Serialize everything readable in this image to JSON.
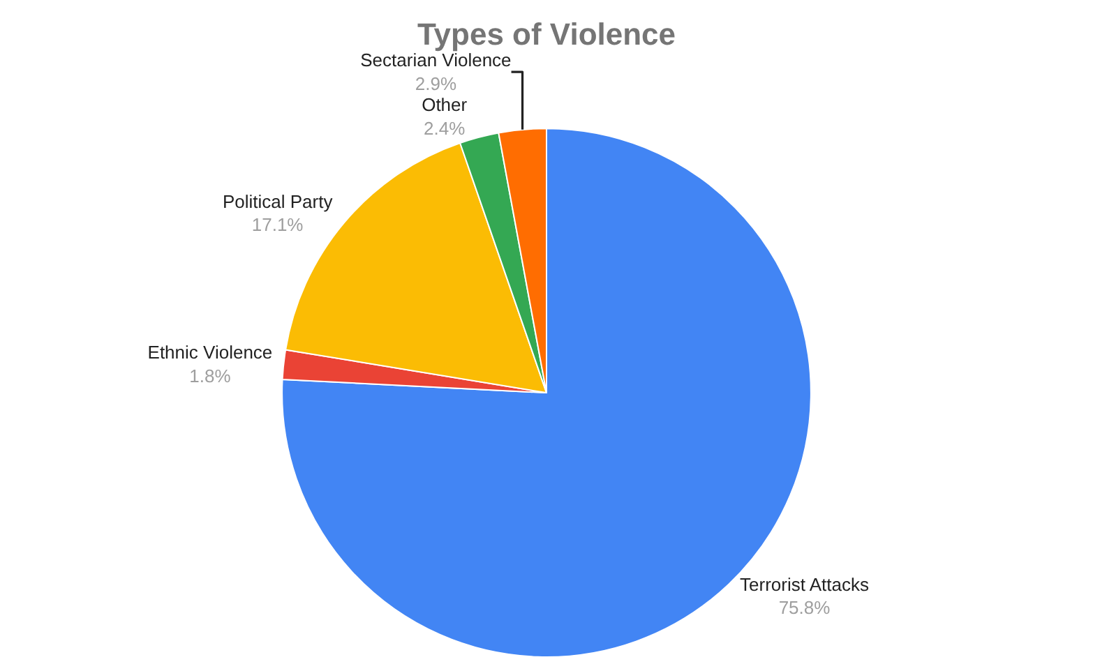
{
  "chart_data": {
    "type": "pie",
    "title": "Types of Violence",
    "categories": [
      "Terrorist Attacks",
      "Ethnic Violence",
      "Political Party",
      "Other",
      "Sectarian Violence"
    ],
    "values": [
      75.8,
      1.8,
      17.1,
      2.4,
      2.9
    ],
    "value_labels": [
      "75.8%",
      "1.8%",
      "17.1%",
      "2.4%",
      "2.9%"
    ],
    "colors": [
      "#4285f4",
      "#ea4335",
      "#fbbc04",
      "#34a853",
      "#ff6d01"
    ],
    "legend": false
  }
}
